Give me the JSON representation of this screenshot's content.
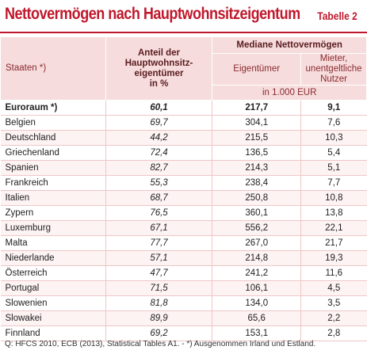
{
  "header": {
    "title": "Nettovermögen nach Hauptwohnsitzeigentum",
    "label": "Tabelle 2"
  },
  "table": {
    "columns": {
      "country": "Staaten *)",
      "share": [
        "Anteil der",
        "Hauptwohnsitz-",
        "eigentümer",
        "in %"
      ],
      "group": "Mediane Nettovermögen",
      "owners": "Eigentümer",
      "tenants": [
        "Mieter,",
        "unentgeltliche Nutzer"
      ],
      "unit": "in 1.000 EUR"
    },
    "rows": [
      [
        "Euroraum *)",
        "60,1",
        "217,7",
        "9,1"
      ],
      [
        "Belgien",
        "69,7",
        "304,1",
        "7,6"
      ],
      [
        "Deutschland",
        "44,2",
        "215,5",
        "10,3"
      ],
      [
        "Griechenland",
        "72,4",
        "136,5",
        "5,4"
      ],
      [
        "Spanien",
        "82,7",
        "214,3",
        "5,1"
      ],
      [
        "Frankreich",
        "55,3",
        "238,4",
        "7,7"
      ],
      [
        "Italien",
        "68,7",
        "250,8",
        "10,8"
      ],
      [
        "Zypern",
        "76,5",
        "360,1",
        "13,8"
      ],
      [
        "Luxemburg",
        "67,1",
        "556,2",
        "22,1"
      ],
      [
        "Malta",
        "77,7",
        "267,0",
        "21,7"
      ],
      [
        "Niederlande",
        "57,1",
        "214,8",
        "19,3"
      ],
      [
        "Österreich",
        "47,7",
        "241,2",
        "11,6"
      ],
      [
        "Portugal",
        "71,5",
        "106,1",
        "4,5"
      ],
      [
        "Slowenien",
        "81,8",
        "134,0",
        "3,5"
      ],
      [
        "Slowakei",
        "89,9",
        "65,6",
        "2,2"
      ],
      [
        "Finnland",
        "69,2",
        "153,1",
        "2,8"
      ]
    ]
  },
  "footer": "Q: HFCS 2010, ECB (2013), Statistical Tables A1. - *) Ausgenommen Irland und Estland."
}
